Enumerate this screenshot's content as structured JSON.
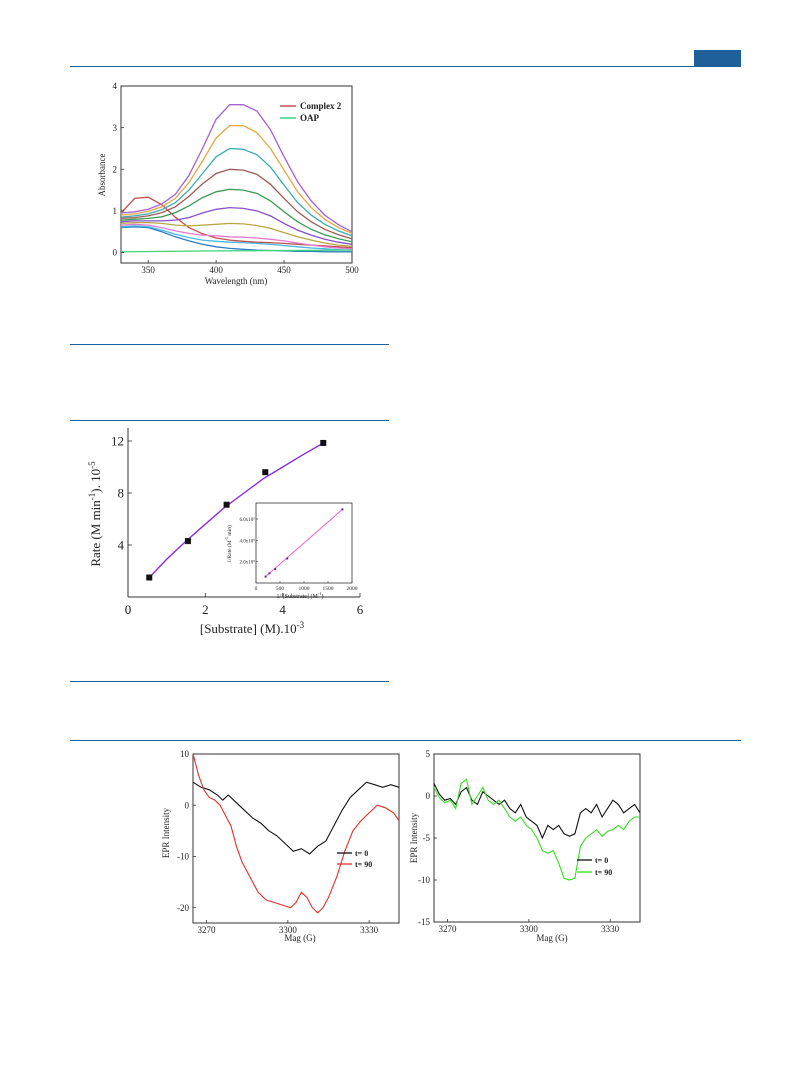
{
  "page": {
    "accent_color": "#1f5f9a"
  },
  "chart_data": [
    {
      "type": "line",
      "xlabel": "Wavelength (nm)",
      "ylabel": "Absorbance",
      "xlim": [
        330,
        500
      ],
      "ylim": [
        -0.25,
        4
      ],
      "xticks": [
        350,
        400,
        450,
        500
      ],
      "yticks": [
        0,
        1,
        2,
        3,
        4
      ],
      "legend": "top-right",
      "legend_entries": [
        {
          "name": "Complex 2",
          "color": "#c0504d"
        },
        {
          "name": "OAP",
          "color": "#3fd27a"
        }
      ],
      "series": [
        {
          "name": "Complex 2",
          "color": "#c0504d",
          "x": [
            330,
            340,
            350,
            360,
            370,
            380,
            390,
            400,
            410,
            420,
            430,
            440,
            450,
            460,
            470,
            480,
            490,
            500
          ],
          "y": [
            0.95,
            1.3,
            1.33,
            1.15,
            0.85,
            0.6,
            0.45,
            0.35,
            0.3,
            0.27,
            0.25,
            0.24,
            0.22,
            0.2,
            0.18,
            0.16,
            0.14,
            0.12
          ]
        },
        {
          "color": "#2a7ec4",
          "x": [
            330,
            340,
            350,
            360,
            370,
            380,
            390,
            400,
            410,
            420,
            430,
            440,
            450,
            460,
            470,
            480,
            490,
            500
          ],
          "y": [
            0.6,
            0.62,
            0.6,
            0.5,
            0.38,
            0.28,
            0.2,
            0.14,
            0.1,
            0.08,
            0.06,
            0.05,
            0.04,
            0.03,
            0.03,
            0.02,
            0.02,
            0.02
          ]
        },
        {
          "color": "#47b8e0",
          "x": [
            330,
            340,
            350,
            360,
            370,
            380,
            390,
            400,
            410,
            420,
            430,
            440,
            450,
            460,
            470,
            480,
            490,
            500
          ],
          "y": [
            0.62,
            0.64,
            0.62,
            0.54,
            0.44,
            0.36,
            0.3,
            0.27,
            0.25,
            0.24,
            0.22,
            0.2,
            0.17,
            0.14,
            0.11,
            0.09,
            0.07,
            0.06
          ]
        },
        {
          "color": "#e27ad0",
          "x": [
            330,
            340,
            350,
            360,
            370,
            380,
            390,
            400,
            410,
            420,
            430,
            440,
            450,
            460,
            470,
            480,
            490,
            500
          ],
          "y": [
            0.66,
            0.68,
            0.66,
            0.6,
            0.52,
            0.46,
            0.42,
            0.4,
            0.38,
            0.37,
            0.35,
            0.32,
            0.28,
            0.23,
            0.18,
            0.14,
            0.11,
            0.09
          ]
        },
        {
          "color": "#b8a640",
          "x": [
            330,
            340,
            350,
            360,
            370,
            380,
            390,
            400,
            410,
            420,
            430,
            440,
            450,
            460,
            470,
            480,
            490,
            500
          ],
          "y": [
            0.7,
            0.72,
            0.72,
            0.7,
            0.66,
            0.64,
            0.66,
            0.68,
            0.7,
            0.69,
            0.65,
            0.58,
            0.48,
            0.38,
            0.3,
            0.23,
            0.18,
            0.15
          ]
        },
        {
          "color": "#8a4fc8",
          "x": [
            330,
            340,
            350,
            360,
            370,
            380,
            390,
            400,
            410,
            420,
            430,
            440,
            450,
            460,
            470,
            480,
            490,
            500
          ],
          "y": [
            0.74,
            0.76,
            0.76,
            0.76,
            0.78,
            0.84,
            0.95,
            1.04,
            1.08,
            1.06,
            1.0,
            0.88,
            0.7,
            0.54,
            0.42,
            0.32,
            0.25,
            0.2
          ]
        },
        {
          "color": "#3e9a58",
          "x": [
            330,
            340,
            350,
            360,
            370,
            380,
            390,
            400,
            410,
            420,
            430,
            440,
            450,
            460,
            470,
            480,
            490,
            500
          ],
          "y": [
            0.78,
            0.8,
            0.82,
            0.86,
            0.96,
            1.12,
            1.32,
            1.46,
            1.52,
            1.5,
            1.42,
            1.24,
            0.98,
            0.74,
            0.56,
            0.43,
            0.33,
            0.26
          ]
        },
        {
          "color": "#9e5a55",
          "x": [
            330,
            340,
            350,
            360,
            370,
            380,
            390,
            400,
            410,
            420,
            430,
            440,
            450,
            460,
            470,
            480,
            490,
            500
          ],
          "y": [
            0.82,
            0.84,
            0.88,
            0.96,
            1.1,
            1.35,
            1.65,
            1.9,
            2.0,
            1.98,
            1.88,
            1.64,
            1.3,
            0.98,
            0.74,
            0.56,
            0.43,
            0.33
          ]
        },
        {
          "color": "#3aaab0",
          "x": [
            330,
            340,
            350,
            360,
            370,
            380,
            390,
            400,
            410,
            420,
            430,
            440,
            450,
            460,
            470,
            480,
            490,
            500
          ],
          "y": [
            0.85,
            0.88,
            0.93,
            1.03,
            1.2,
            1.5,
            1.9,
            2.3,
            2.5,
            2.48,
            2.35,
            2.05,
            1.62,
            1.2,
            0.9,
            0.68,
            0.52,
            0.4
          ]
        },
        {
          "color": "#e0a845",
          "x": [
            330,
            340,
            350,
            360,
            370,
            380,
            390,
            400,
            410,
            420,
            430,
            440,
            450,
            460,
            470,
            480,
            490,
            500
          ],
          "y": [
            0.9,
            0.93,
            0.99,
            1.1,
            1.3,
            1.68,
            2.2,
            2.75,
            3.05,
            3.05,
            2.88,
            2.5,
            1.98,
            1.46,
            1.08,
            0.8,
            0.6,
            0.46
          ]
        },
        {
          "color": "#a760d0",
          "x": [
            330,
            340,
            350,
            360,
            370,
            380,
            390,
            400,
            410,
            420,
            430,
            440,
            450,
            460,
            470,
            480,
            490,
            500
          ],
          "y": [
            0.95,
            0.98,
            1.04,
            1.17,
            1.4,
            1.85,
            2.5,
            3.2,
            3.55,
            3.55,
            3.4,
            2.95,
            2.3,
            1.7,
            1.24,
            0.9,
            0.67,
            0.5
          ]
        },
        {
          "name": "OAP",
          "color": "#3fd27a",
          "x": [
            330,
            400,
            500
          ],
          "y": [
            0.02,
            0.04,
            0.06
          ]
        }
      ]
    },
    {
      "type": "scatter",
      "xlabel": "[Substrate] (M).10",
      "xlabel_sup": "-3",
      "ylabel": "Rate (M min",
      "ylabel_sup1": "-1",
      "ylabel_mid": "). 10",
      "ylabel_sup2": "-5",
      "xlim": [
        0,
        6
      ],
      "ylim": [
        0,
        13
      ],
      "xticks": [
        0,
        2,
        4,
        6
      ],
      "yticks": [
        4,
        8,
        12
      ],
      "series": [
        {
          "x": [
            0.55,
            1.55,
            2.55,
            3.55,
            5.05
          ],
          "y": [
            1.5,
            4.3,
            7.1,
            9.6,
            11.85
          ]
        }
      ],
      "fit": {
        "x": [
          0.55,
          1.0,
          1.5,
          2.0,
          2.5,
          3.0,
          3.5,
          4.0,
          4.5,
          5.05
        ],
        "y": [
          1.5,
          2.9,
          4.3,
          5.6,
          6.9,
          8.0,
          9.1,
          10.0,
          10.9,
          11.85
        ]
      },
      "inset": {
        "xlabel": "1/ [Substrate] (M",
        "xlabel_sup": "-1",
        "ylabel": "1/Rate (M",
        "ylabel_sup": "-1",
        "ylabel_tail": " min)",
        "xlim": [
          0,
          2000
        ],
        "ylim": [
          0,
          7.5
        ],
        "xticks": [
          "0",
          "500",
          "1000",
          "1500",
          "2000"
        ],
        "yticks": [
          "2.0x10⁵",
          "4.0x10⁵",
          "6.0x10⁵"
        ],
        "ytick_values": [
          2,
          4,
          6
        ],
        "x": [
          200,
          280,
          400,
          650,
          1800
        ],
        "y": [
          0.6,
          0.9,
          1.3,
          2.3,
          6.9
        ]
      }
    },
    {
      "type": "line",
      "xlabel": "Mag (G)",
      "ylabel": "EPR Intensity",
      "xlim": [
        3265,
        3341
      ],
      "ylim": [
        -23,
        10
      ],
      "xticks": [
        3270,
        3300,
        3330
      ],
      "yticks": [
        10,
        0,
        -10,
        -20
      ],
      "legend": "lower-right",
      "series": [
        {
          "name": "t= 0",
          "color": "#111111",
          "x": [
            3265,
            3268,
            3271,
            3274,
            3276,
            3278,
            3281,
            3284,
            3287,
            3290,
            3293,
            3296,
            3299,
            3302,
            3305,
            3308,
            3311,
            3314,
            3317,
            3320,
            3323,
            3326,
            3329,
            3332,
            3335,
            3338,
            3341
          ],
          "y": [
            4.5,
            3.5,
            3,
            2,
            1,
            2,
            0.5,
            -1,
            -2.5,
            -3.5,
            -5,
            -6,
            -7.5,
            -9,
            -8.5,
            -9.5,
            -8,
            -7,
            -4,
            -1,
            1.5,
            3,
            4.5,
            4,
            3.5,
            4,
            3.5
          ]
        },
        {
          "name": "t= 90",
          "color": "#e0302a",
          "x": [
            3265,
            3267,
            3269,
            3271,
            3273,
            3275,
            3277,
            3279,
            3281,
            3283,
            3286,
            3289,
            3292,
            3295,
            3298,
            3301,
            3303,
            3305,
            3307,
            3309,
            3311,
            3313,
            3315,
            3318,
            3321,
            3324,
            3327,
            3330,
            3333,
            3336,
            3339,
            3341
          ],
          "y": [
            10,
            6,
            3,
            1.5,
            1,
            0,
            -2,
            -4,
            -8,
            -11,
            -14,
            -17,
            -18.5,
            -19,
            -19.5,
            -20,
            -19,
            -17,
            -18,
            -20,
            -21,
            -20,
            -18,
            -14,
            -9,
            -5,
            -3,
            -1.5,
            0,
            -0.5,
            -1.5,
            -3
          ]
        }
      ]
    },
    {
      "type": "line",
      "xlabel": "Mag (G)",
      "ylabel": "EPR Intensity",
      "xlim": [
        3265,
        3341
      ],
      "ylim": [
        -15,
        5
      ],
      "xticks": [
        3270,
        3300,
        3330
      ],
      "yticks": [
        5,
        0,
        -5,
        -10,
        -15
      ],
      "legend": "lower-right",
      "series": [
        {
          "name": "t= 0",
          "color": "#111111",
          "x": [
            3265,
            3267,
            3269,
            3271,
            3273,
            3275,
            3277,
            3279,
            3281,
            3283,
            3285,
            3287,
            3289,
            3291,
            3293,
            3295,
            3297,
            3299,
            3301,
            3303,
            3305,
            3307,
            3309,
            3311,
            3313,
            3315,
            3317,
            3319,
            3321,
            3323,
            3325,
            3327,
            3329,
            3331,
            3333,
            3335,
            3337,
            3339,
            3341
          ],
          "y": [
            1.5,
            0.2,
            -0.5,
            -0.3,
            -1,
            0.5,
            1,
            -0.5,
            -1,
            0.5,
            0,
            -0.5,
            -1,
            -0.5,
            -1.5,
            -2,
            -1,
            -2.5,
            -3,
            -3.5,
            -5,
            -3.5,
            -4,
            -3.5,
            -4.5,
            -4.8,
            -4.5,
            -2,
            -1.5,
            -2,
            -1,
            -2.5,
            -1.5,
            -0.5,
            -1,
            -2,
            -1.5,
            -1,
            -2
          ]
        },
        {
          "name": "t= 90",
          "color": "#33dd22",
          "x": [
            3265,
            3267,
            3269,
            3271,
            3273,
            3275,
            3277,
            3279,
            3281,
            3283,
            3285,
            3287,
            3289,
            3291,
            3293,
            3295,
            3297,
            3299,
            3301,
            3303,
            3305,
            3307,
            3309,
            3311,
            3313,
            3315,
            3317,
            3319,
            3321,
            3323,
            3325,
            3327,
            3329,
            3331,
            3333,
            3335,
            3337,
            3339,
            3341
          ],
          "y": [
            1,
            -0.2,
            -0.8,
            -0.5,
            -1.5,
            1.5,
            2,
            -1,
            0,
            1,
            -0.5,
            -1,
            -0.5,
            -1.5,
            -2.5,
            -3,
            -2.5,
            -3.5,
            -4,
            -5,
            -6.5,
            -6.8,
            -6.5,
            -8,
            -9.8,
            -10,
            -9.8,
            -6,
            -5,
            -4.5,
            -4,
            -4.8,
            -4.2,
            -4,
            -3.5,
            -4,
            -3,
            -2.5,
            -2.5
          ]
        }
      ]
    }
  ]
}
